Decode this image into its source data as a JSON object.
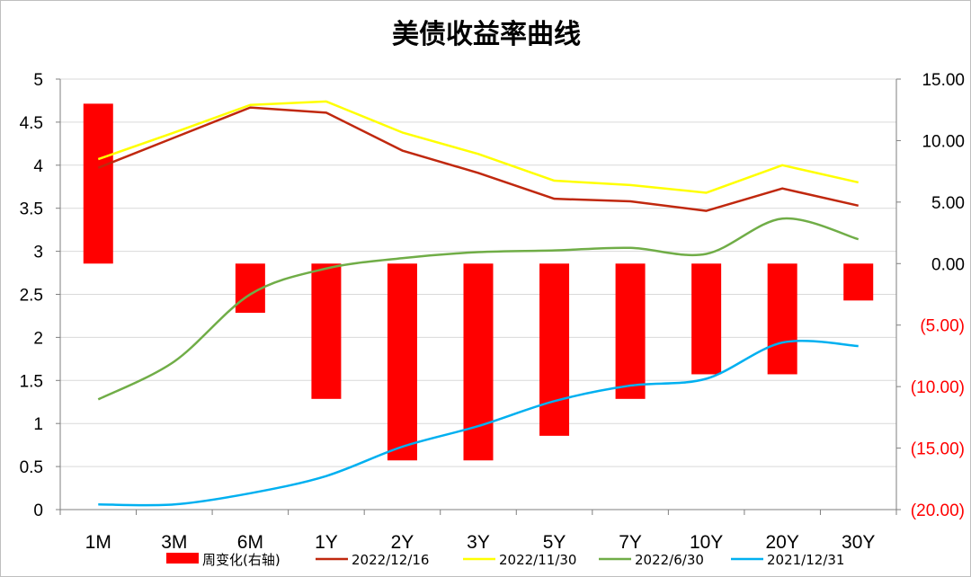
{
  "chart_data": {
    "type": "bar",
    "title": "美债收益率曲线",
    "categories": [
      "1M",
      "3M",
      "6M",
      "1Y",
      "2Y",
      "3Y",
      "5Y",
      "7Y",
      "10Y",
      "20Y",
      "30Y"
    ],
    "left_axis": {
      "ylim": [
        0,
        5
      ],
      "ticks": [
        "0",
        "0.5",
        "1",
        "1.5",
        "2",
        "2.5",
        "3",
        "3.5",
        "4",
        "4.5",
        "5"
      ]
    },
    "right_axis": {
      "ylim": [
        -20,
        15
      ],
      "ticks": [
        "15.00",
        "10.00",
        "5.00",
        "0.00",
        "(5.00)",
        "(10.00)",
        "(15.00)",
        "(20.00)"
      ],
      "tick_values": [
        15,
        10,
        5,
        0,
        -5,
        -10,
        -15,
        -20
      ]
    },
    "grid": "horizontal",
    "legend_position": "bottom",
    "bars": {
      "name": "周变化(右轴)",
      "axis": "right",
      "color": "#ff0000",
      "values": [
        13,
        null,
        -4,
        -11,
        -16,
        -16,
        -14,
        -11,
        -9,
        -9,
        -3
      ]
    },
    "series": [
      {
        "name": "2022/12/16",
        "color": "#c0280e",
        "values": [
          3.97,
          4.32,
          4.67,
          4.61,
          4.17,
          3.91,
          3.61,
          3.58,
          3.47,
          3.73,
          3.53
        ]
      },
      {
        "name": "2022/11/30",
        "color": "#ffff00",
        "values": [
          4.07,
          4.38,
          4.7,
          4.74,
          4.38,
          4.13,
          3.82,
          3.77,
          3.68,
          4.0,
          3.8
        ]
      },
      {
        "name": "2022/6/30",
        "color": "#70ad47",
        "values": [
          1.28,
          1.72,
          2.5,
          2.8,
          2.92,
          2.99,
          3.01,
          3.04,
          2.97,
          3.38,
          3.14
        ]
      },
      {
        "name": "2021/12/31",
        "color": "#00b0f0",
        "values": [
          0.06,
          0.06,
          0.19,
          0.39,
          0.73,
          0.97,
          1.26,
          1.44,
          1.52,
          1.94,
          1.9
        ]
      }
    ]
  }
}
